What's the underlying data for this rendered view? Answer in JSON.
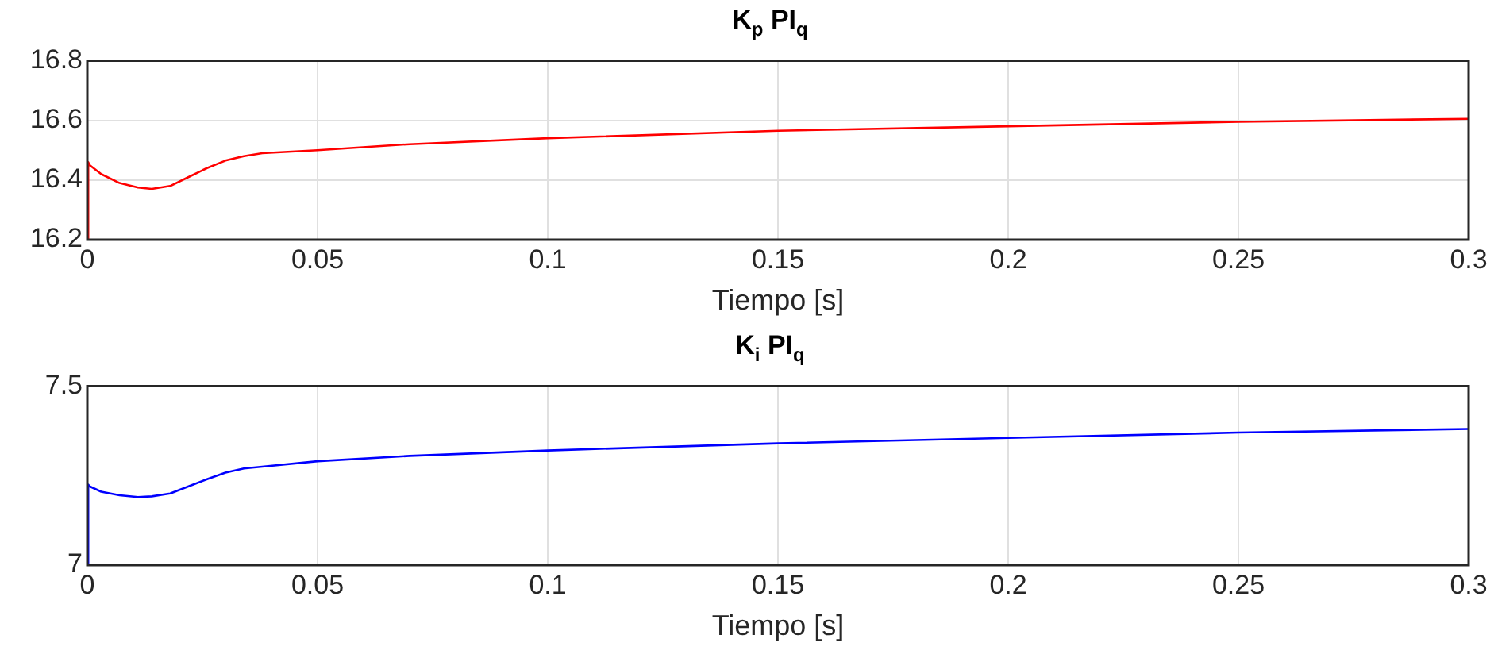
{
  "chart_data": [
    {
      "type": "line",
      "title": "K$_{p}$ PI$_{q}$",
      "xlabel": "Tiempo [s]",
      "xlim": [
        0,
        0.3
      ],
      "xticks": [
        0,
        0.05,
        0.1,
        0.15,
        0.2,
        0.25,
        0.3
      ],
      "ylim": [
        16.2,
        16.8
      ],
      "yticks": [
        16.2,
        16.4,
        16.6,
        16.8
      ],
      "grid": true,
      "legend": false,
      "marker": "none",
      "line_style": "solid",
      "series": [
        {
          "color": "#ff0000",
          "x": [
            0,
            0.0002,
            0.0005,
            0.003,
            0.007,
            0.011,
            0.014,
            0.018,
            0.022,
            0.026,
            0.03,
            0.034,
            0.038,
            0.05,
            0.07,
            0.1,
            0.15,
            0.2,
            0.25,
            0.3
          ],
          "values": [
            16.2,
            16.46,
            16.45,
            16.42,
            16.39,
            16.375,
            16.37,
            16.38,
            16.41,
            16.44,
            16.465,
            16.48,
            16.49,
            16.5,
            16.52,
            16.54,
            16.565,
            16.58,
            16.595,
            16.605
          ]
        }
      ]
    },
    {
      "type": "line",
      "title": "K$_{i}$ PI$_{q}$",
      "xlabel": "Tiempo [s]",
      "xlim": [
        0,
        0.3
      ],
      "xticks": [
        0,
        0.05,
        0.1,
        0.15,
        0.2,
        0.25,
        0.3
      ],
      "ylim": [
        7,
        7.5
      ],
      "yticks": [
        7,
        7.5
      ],
      "grid": true,
      "legend": false,
      "marker": "none",
      "line_style": "solid",
      "series": [
        {
          "color": "#0000ff",
          "x": [
            0,
            0.0002,
            0.0005,
            0.003,
            0.007,
            0.011,
            0.014,
            0.018,
            0.022,
            0.026,
            0.03,
            0.034,
            0.038,
            0.05,
            0.07,
            0.1,
            0.15,
            0.2,
            0.25,
            0.3
          ],
          "values": [
            7,
            7.225,
            7.22,
            7.205,
            7.195,
            7.19,
            7.192,
            7.2,
            7.22,
            7.24,
            7.258,
            7.27,
            7.275,
            7.29,
            7.305,
            7.32,
            7.34,
            7.355,
            7.37,
            7.38
          ]
        }
      ]
    }
  ]
}
